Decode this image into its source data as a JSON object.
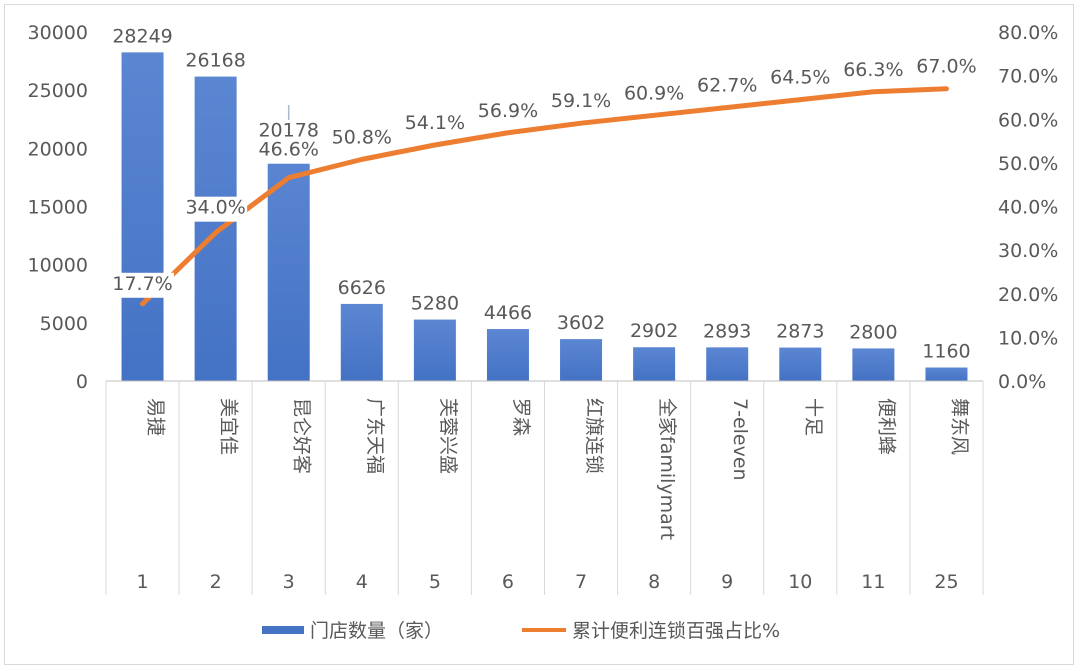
{
  "chart_data": {
    "type": "bar",
    "categories": [
      "易捷",
      "美宜佳",
      "昆仑好客",
      "广东天福",
      "芙蓉兴盛",
      "罗森",
      "红旗连锁",
      "全家familymart",
      "7-eleven",
      "十足",
      "便利蜂",
      "舞东风"
    ],
    "ranks": [
      "1",
      "2",
      "3",
      "4",
      "5",
      "6",
      "7",
      "8",
      "9",
      "10",
      "11",
      "25"
    ],
    "series": [
      {
        "name": "门店数量（家）",
        "type": "bar",
        "axis": "left",
        "color": "#4472C4",
        "values": [
          28249,
          26168,
          20178,
          6626,
          5280,
          4466,
          3602,
          2902,
          2893,
          2873,
          2800,
          1160
        ],
        "labels": [
          "28249",
          "26168",
          "20178",
          "6626",
          "5280",
          "4466",
          "3602",
          "2902",
          "2893",
          "2873",
          "2800",
          "1160"
        ]
      },
      {
        "name": "累计便利连锁百强占比%",
        "type": "line",
        "axis": "right",
        "color": "#ED7D31",
        "values": [
          17.7,
          34.0,
          46.6,
          50.8,
          54.1,
          56.9,
          59.1,
          60.9,
          62.7,
          64.5,
          66.3,
          67.0
        ],
        "labels": [
          "17.7%",
          "34.0%",
          "46.6%",
          "50.8%",
          "54.1%",
          "56.9%",
          "59.1%",
          "60.9%",
          "62.7%",
          "64.5%",
          "66.3%",
          "67.0%"
        ]
      }
    ],
    "left_axis": {
      "ylim": [
        0,
        30000
      ],
      "ticks": [
        0,
        5000,
        10000,
        15000,
        20000,
        25000,
        30000
      ],
      "tick_labels": [
        "0",
        "5000",
        "10000",
        "15000",
        "20000",
        "25000",
        "30000"
      ]
    },
    "right_axis": {
      "ylim": [
        0,
        80
      ],
      "ticks": [
        0,
        10,
        20,
        30,
        40,
        50,
        60,
        70,
        80
      ],
      "tick_labels": [
        "0.0%",
        "10.0%",
        "20.0%",
        "30.0%",
        "40.0%",
        "50.0%",
        "60.0%",
        "70.0%",
        "80.0%"
      ]
    },
    "grid": false,
    "legend_position": "bottom"
  }
}
